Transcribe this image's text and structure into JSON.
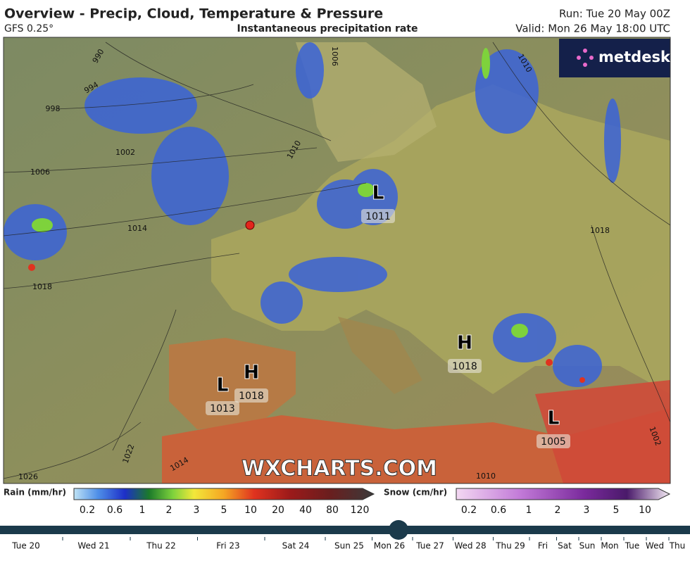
{
  "header": {
    "title": "Overview - Precip, Cloud, Temperature & Pressure",
    "model": "GFS 0.25°",
    "subtitle": "Instantaneous precipitation rate",
    "run": "Run: Tue 20 May 00Z",
    "valid": "Valid: Mon 26 May 18:00 UTC"
  },
  "map": {
    "logo": "metdesk",
    "watermark": "WXCHARTS.COM",
    "isobar_labels": [
      "990",
      "994",
      "998",
      "1002",
      "1006",
      "1010",
      "1014",
      "1018",
      "1022",
      "1026",
      "1006",
      "1010",
      "1018",
      "1002",
      "1010",
      "1014"
    ],
    "pressure_centers": [
      {
        "symbol": "L",
        "value": "1011"
      },
      {
        "symbol": "H",
        "value": "1018"
      },
      {
        "symbol": "H",
        "value": "1018"
      },
      {
        "symbol": "L",
        "value": "1013"
      },
      {
        "symbol": "L",
        "value": "1005"
      }
    ]
  },
  "legend": {
    "rain": {
      "label": "Rain (mm/hr)",
      "ticks": [
        "0.2",
        "0.6",
        "1",
        "2",
        "3",
        "5",
        "10",
        "20",
        "40",
        "80",
        "120"
      ]
    },
    "snow": {
      "label": "Snow (cm/hr)",
      "ticks": [
        "0.2",
        "0.6",
        "1",
        "2",
        "3",
        "5",
        "10"
      ]
    }
  },
  "timeline": {
    "days": [
      "Tue 20",
      "Wed 21",
      "Thu 22",
      "Fri 23",
      "Sat 24",
      "Sun 25",
      "Mon 26",
      "Tue 27",
      "Wed 28",
      "Thu 29",
      "Fri",
      "Sat",
      "Sun",
      "Mon",
      "Tue",
      "Wed",
      "Thu"
    ]
  }
}
